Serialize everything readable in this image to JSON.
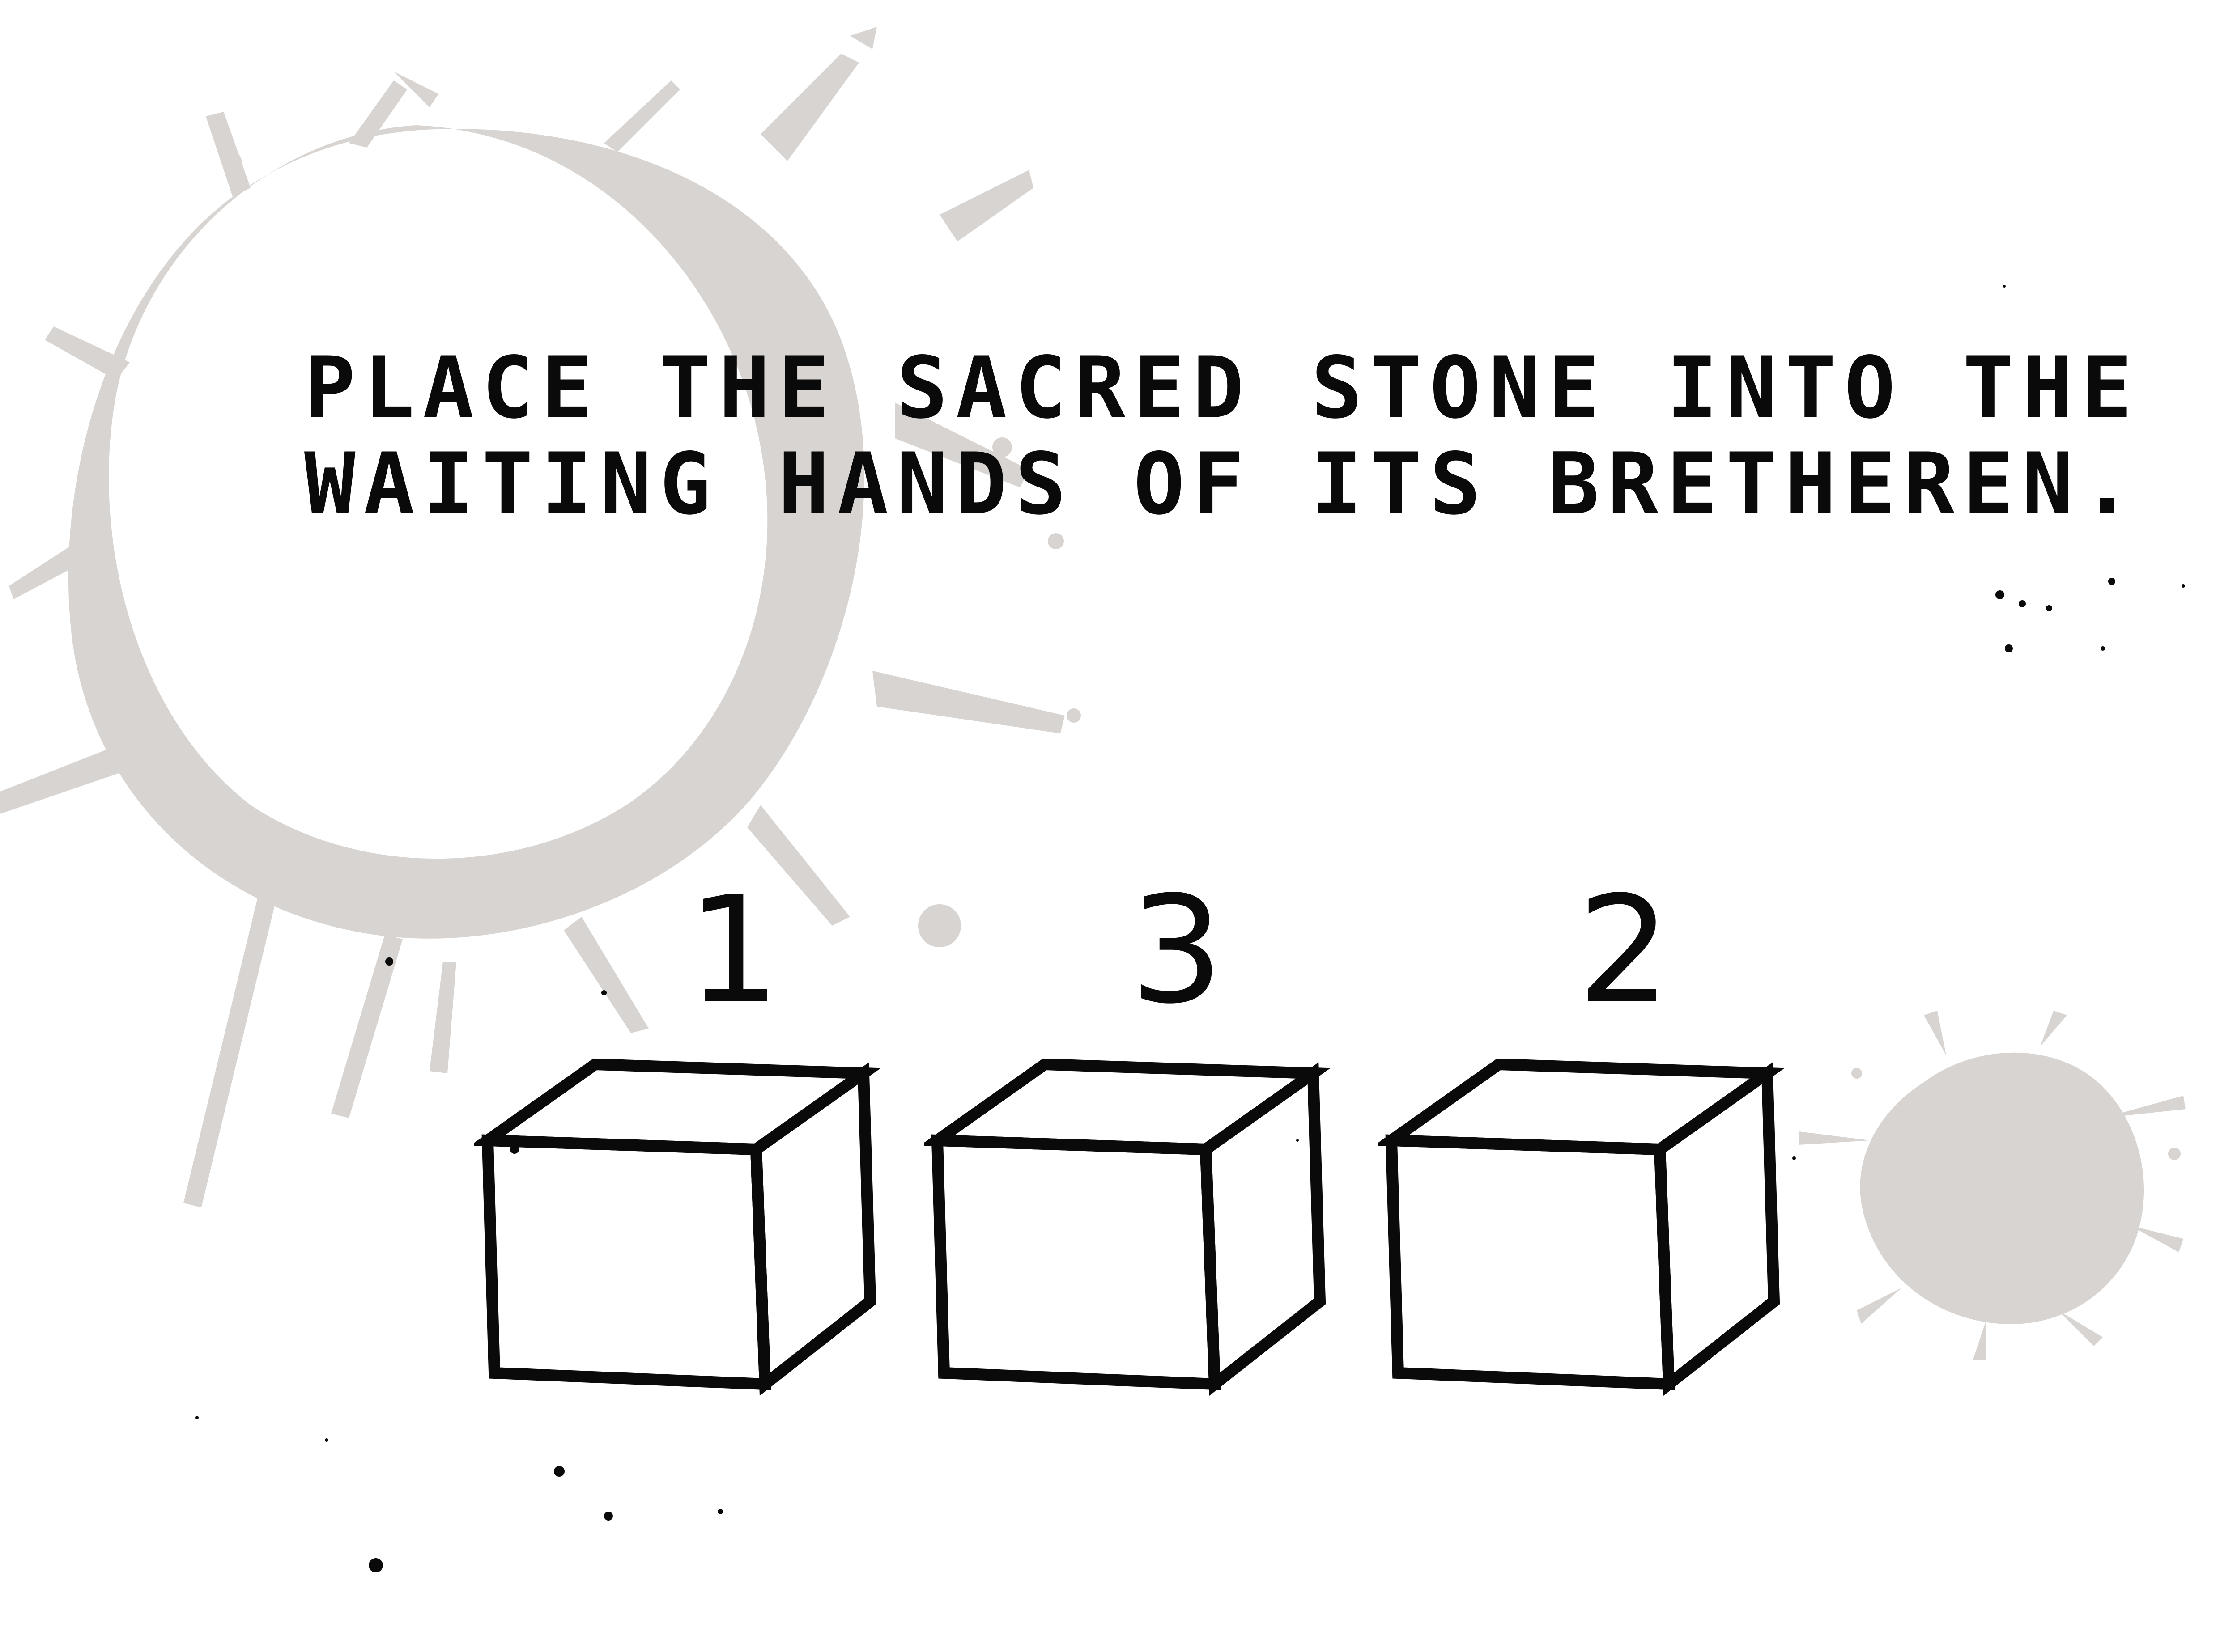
{
  "puzzle": {
    "instruction_line_1": "PLACE THE SACRED STONE INTO THE",
    "instruction_line_2": "WAITING HANDS OF ITS BRETHEREN.",
    "ink_color": "#0a0a0a",
    "stain_color": "#d6d2cf"
  },
  "boxes": [
    {
      "label": "1"
    },
    {
      "label": "3"
    },
    {
      "label": "2"
    }
  ]
}
